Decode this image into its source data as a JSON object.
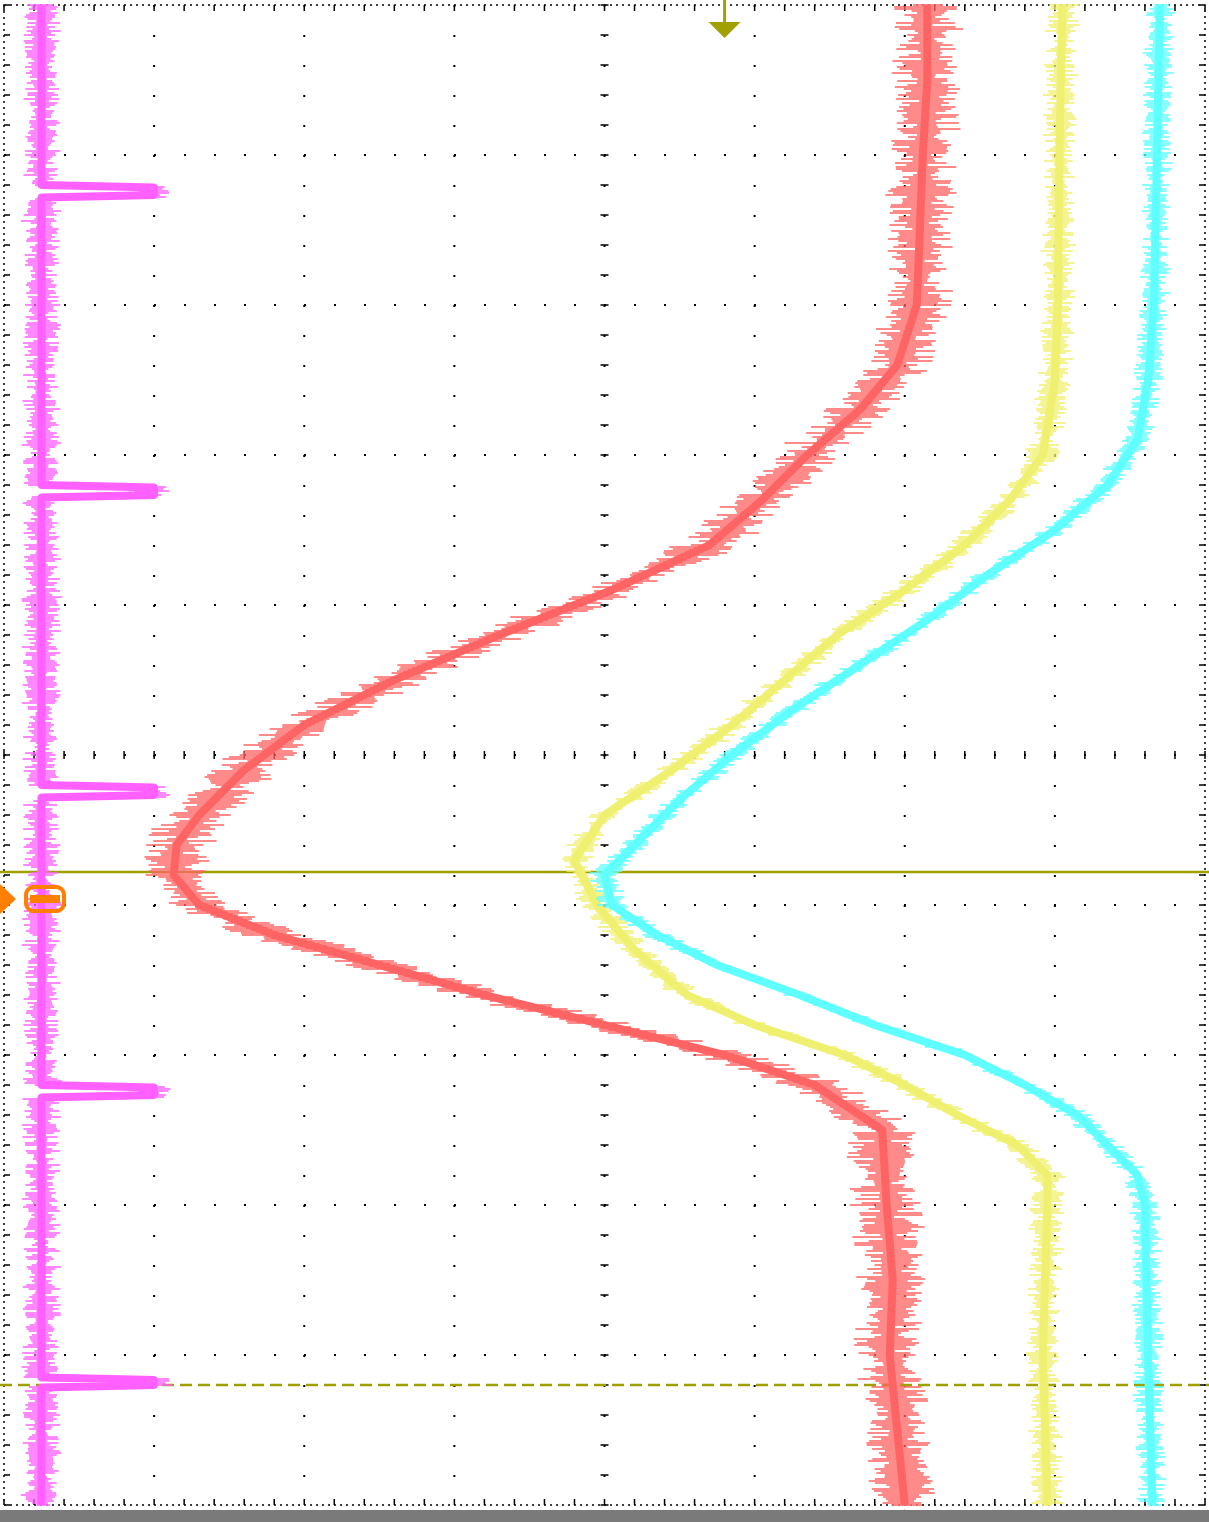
{
  "colors": {
    "background": "#ffffff",
    "grid": "#000000",
    "bezel": "#7a7a7a",
    "cursor": "#a0a000",
    "trigger": "#ff8000"
  },
  "icons": {
    "trigger_marker": "trigger-arrow-right-icon",
    "trigger_position": "trigger-arrow-down-icon",
    "channel_marker": "ground-caret-up-icon"
  },
  "chart_data": {
    "type": "line",
    "orientation": "rotated-90",
    "title": "",
    "xlabel": "",
    "ylabel": "",
    "grid": true,
    "grid_divisions": {
      "time_axis": 10,
      "amplitude_axis": 8
    },
    "time_range": [
      0,
      10
    ],
    "cursors": [
      {
        "name": "",
        "time": 5.78,
        "style": "solid"
      },
      {
        "name": "",
        "time": 9.2,
        "style": "dashed"
      }
    ],
    "series": [
      {
        "name": "",
        "color": "#ff60ff",
        "noise": 0.1,
        "time": [
          0.0,
          1.2,
          1.2,
          1.28,
          1.28,
          1.3,
          1.3,
          3.2,
          3.2,
          3.28,
          3.28,
          3.3,
          3.3,
          5.2,
          5.2,
          5.28,
          5.28,
          5.3,
          5.3,
          7.2,
          7.2,
          7.28,
          7.28,
          7.3,
          7.3,
          9.15,
          9.15,
          9.21,
          9.21,
          9.23,
          9.23,
          10.0
        ],
        "value": [
          0.25,
          0.25,
          1.0,
          1.0,
          0.25,
          0.25,
          0.25,
          0.25,
          1.0,
          1.0,
          0.25,
          0.25,
          0.25,
          0.25,
          1.0,
          1.0,
          0.25,
          0.25,
          0.25,
          0.25,
          1.0,
          1.0,
          0.25,
          0.25,
          0.25,
          0.25,
          1.0,
          1.0,
          0.25,
          0.25,
          0.25,
          0.25
        ]
      },
      {
        "name": "",
        "color": "#ff6464",
        "noise": 0.18,
        "time": [
          0.0,
          0.5,
          1.0,
          1.5,
          2.0,
          2.4,
          2.7,
          3.0,
          3.3,
          3.6,
          3.9,
          4.2,
          4.5,
          4.8,
          5.1,
          5.4,
          5.6,
          5.8,
          6.0,
          6.2,
          6.4,
          6.6,
          6.8,
          7.0,
          7.2,
          7.5,
          8.0,
          8.5,
          9.0,
          9.5,
          10.0
        ],
        "value": [
          6.15,
          6.15,
          6.12,
          6.1,
          6.08,
          5.95,
          5.7,
          5.35,
          5.05,
          4.7,
          4.05,
          3.3,
          2.6,
          2.0,
          1.6,
          1.3,
          1.15,
          1.13,
          1.3,
          1.8,
          2.5,
          3.2,
          4.0,
          4.8,
          5.4,
          5.85,
          5.88,
          5.92,
          5.9,
          5.95,
          6.0
        ]
      },
      {
        "name": "",
        "color": "#f0f070",
        "noise": 0.09,
        "time": [
          0.0,
          1.0,
          2.0,
          2.5,
          3.0,
          3.3,
          3.6,
          3.9,
          4.2,
          4.5,
          4.8,
          5.1,
          5.4,
          5.7,
          6.0,
          6.3,
          6.6,
          6.8,
          7.0,
          7.2,
          7.4,
          7.6,
          7.8,
          8.0,
          9.0,
          10.0
        ],
        "value": [
          7.05,
          7.03,
          7.02,
          7.0,
          6.92,
          6.7,
          6.4,
          6.0,
          5.55,
          5.2,
          4.85,
          4.45,
          4.0,
          3.8,
          3.95,
          4.2,
          4.55,
          5.0,
          5.6,
          6.0,
          6.35,
          6.75,
          6.95,
          6.95,
          6.92,
          6.95
        ]
      },
      {
        "name": "",
        "color": "#60ffff",
        "noise": 0.08,
        "time": [
          0.0,
          1.0,
          2.0,
          2.5,
          2.9,
          3.2,
          3.5,
          3.8,
          4.1,
          4.4,
          4.7,
          5.0,
          5.3,
          5.6,
          5.8,
          6.0,
          6.2,
          6.4,
          6.6,
          6.8,
          7.0,
          7.2,
          7.4,
          7.6,
          7.8,
          8.0,
          9.0,
          10.0
        ],
        "value": [
          7.7,
          7.68,
          7.66,
          7.62,
          7.55,
          7.35,
          7.0,
          6.55,
          6.15,
          5.7,
          5.25,
          4.85,
          4.5,
          4.2,
          4.0,
          4.05,
          4.35,
          4.75,
          5.3,
          5.8,
          6.4,
          6.8,
          7.15,
          7.35,
          7.55,
          7.6,
          7.62,
          7.65
        ]
      }
    ]
  }
}
